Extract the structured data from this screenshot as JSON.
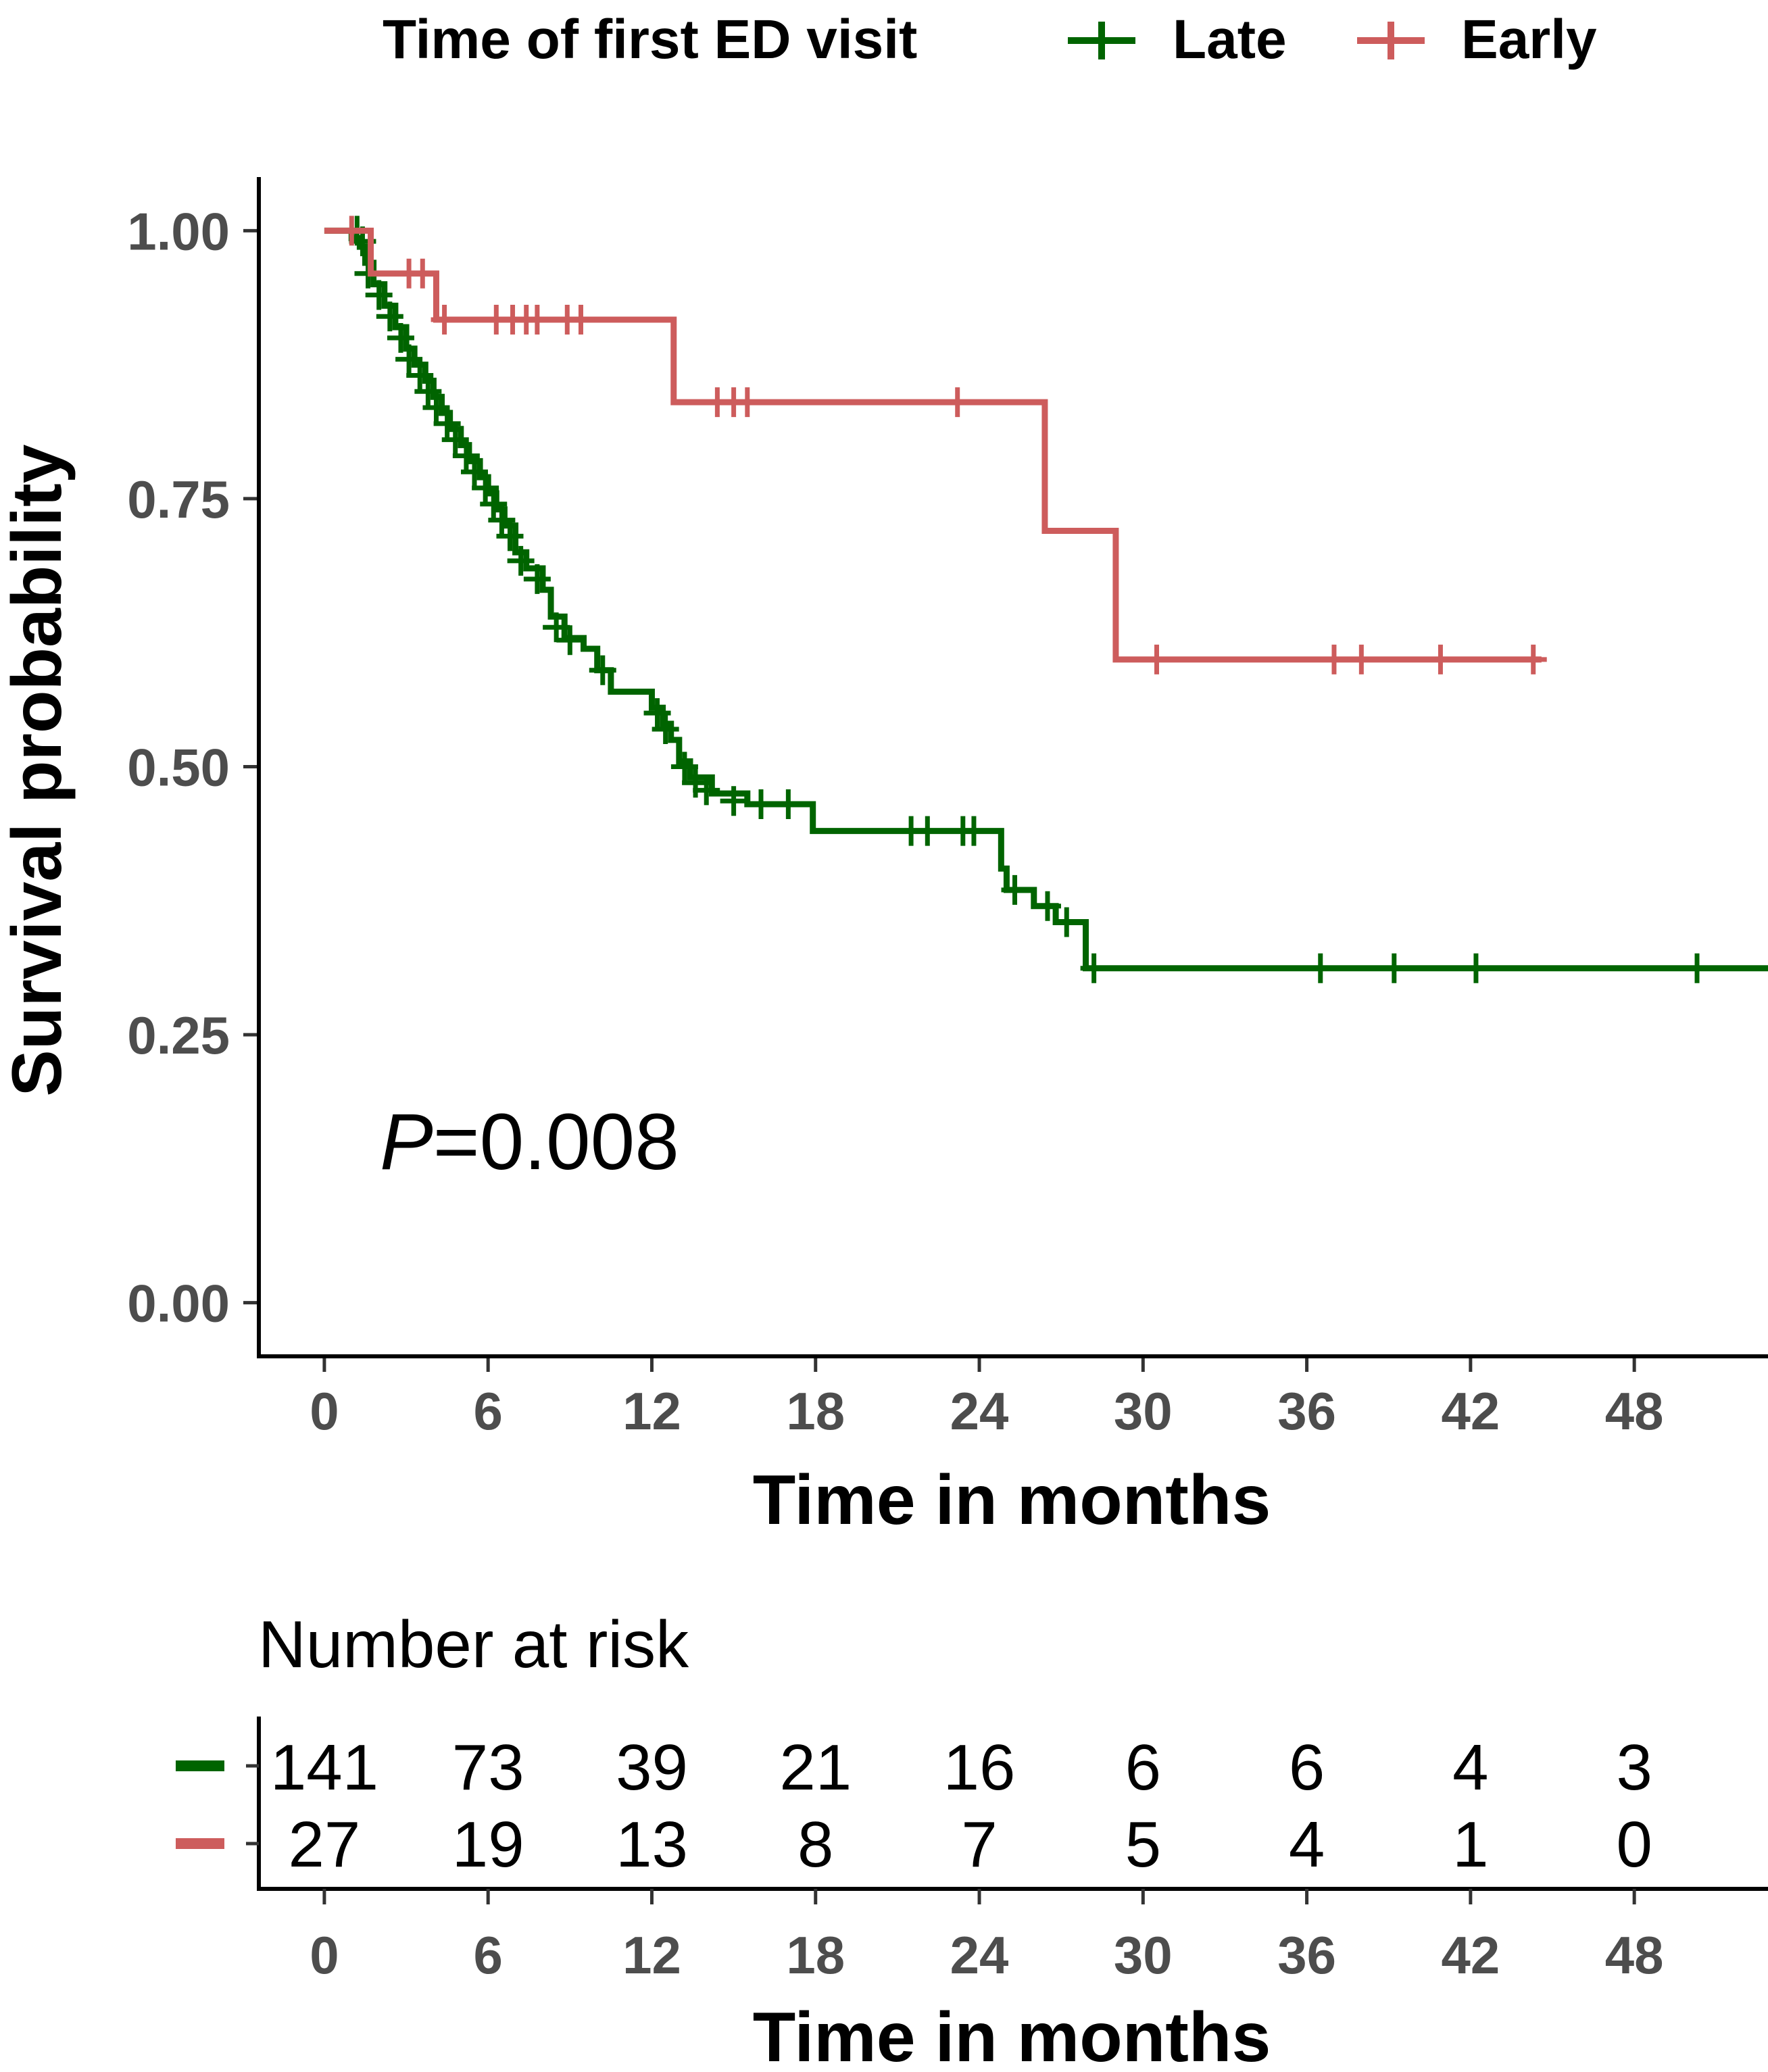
{
  "chart_data": [
    {
      "type": "line",
      "subtype": "kaplan-meier",
      "title": "",
      "xlabel": "Time in months",
      "ylabel": "Survival probability",
      "xlim": [
        -2.4,
        52.9
      ],
      "ylim": [
        -0.05,
        1.05
      ],
      "x_ticks": [
        0,
        6,
        12,
        18,
        24,
        30,
        36,
        42,
        48
      ],
      "y_ticks": [
        0.0,
        0.25,
        0.5,
        0.75,
        1.0
      ],
      "y_tick_labels": [
        "0.00",
        "0.25",
        "0.50",
        "0.75",
        "1.00"
      ],
      "legend": {
        "title": "Time of first ED visit",
        "position": "top",
        "entries": [
          "Late",
          "Early"
        ]
      },
      "annotation": {
        "italic": "P",
        "rest": "=0.008"
      },
      "series": [
        {
          "name": "Late",
          "color": "#006400",
          "steps": [
            [
              0,
              1.0
            ],
            [
              1.0,
              0.993
            ],
            [
              1.3,
              0.985
            ],
            [
              1.5,
              0.97
            ],
            [
              1.8,
              0.95
            ],
            [
              2.2,
              0.93
            ],
            [
              2.6,
              0.91
            ],
            [
              3.0,
              0.89
            ],
            [
              3.3,
              0.875
            ],
            [
              3.7,
              0.86
            ],
            [
              4.0,
              0.845
            ],
            [
              4.3,
              0.83
            ],
            [
              4.6,
              0.815
            ],
            [
              5.0,
              0.8
            ],
            [
              5.3,
              0.785
            ],
            [
              5.7,
              0.77
            ],
            [
              6.0,
              0.755
            ],
            [
              6.3,
              0.74
            ],
            [
              6.6,
              0.725
            ],
            [
              7.0,
              0.7
            ],
            [
              7.4,
              0.685
            ],
            [
              8.0,
              0.665
            ],
            [
              8.3,
              0.64
            ],
            [
              8.8,
              0.62
            ],
            [
              9.5,
              0.61
            ],
            [
              10.0,
              0.59
            ],
            [
              10.5,
              0.57
            ],
            [
              12.0,
              0.555
            ],
            [
              12.4,
              0.54
            ],
            [
              12.7,
              0.525
            ],
            [
              13.0,
              0.505
            ],
            [
              13.4,
              0.49
            ],
            [
              14.2,
              0.475
            ],
            [
              15.5,
              0.465
            ],
            [
              17.9,
              0.44
            ],
            [
              24.8,
              0.405
            ],
            [
              25.0,
              0.385
            ],
            [
              26.0,
              0.37
            ],
            [
              26.8,
              0.355
            ],
            [
              27.9,
              0.312
            ],
            [
              52.9,
              0.312
            ]
          ],
          "censors": [
            [
              1.2,
              1.0
            ],
            [
              1.4,
              0.99
            ],
            [
              1.6,
              0.96
            ],
            [
              2.0,
              0.94
            ],
            [
              2.4,
              0.92
            ],
            [
              2.8,
              0.9
            ],
            [
              3.1,
              0.88
            ],
            [
              3.5,
              0.865
            ],
            [
              3.8,
              0.85
            ],
            [
              4.1,
              0.835
            ],
            [
              4.5,
              0.82
            ],
            [
              4.8,
              0.805
            ],
            [
              5.2,
              0.79
            ],
            [
              5.5,
              0.775
            ],
            [
              5.9,
              0.76
            ],
            [
              6.2,
              0.745
            ],
            [
              6.5,
              0.73
            ],
            [
              6.8,
              0.715
            ],
            [
              7.2,
              0.692
            ],
            [
              7.8,
              0.675
            ],
            [
              8.5,
              0.63
            ],
            [
              9.0,
              0.618
            ],
            [
              10.2,
              0.59
            ],
            [
              12.2,
              0.55
            ],
            [
              12.5,
              0.535
            ],
            [
              13.2,
              0.5
            ],
            [
              13.6,
              0.485
            ],
            [
              14.0,
              0.478
            ],
            [
              15.0,
              0.468
            ],
            [
              16.0,
              0.465
            ],
            [
              17.0,
              0.465
            ],
            [
              21.5,
              0.44
            ],
            [
              22.1,
              0.44
            ],
            [
              23.4,
              0.44
            ],
            [
              23.8,
              0.44
            ],
            [
              25.3,
              0.385
            ],
            [
              26.5,
              0.37
            ],
            [
              27.2,
              0.355
            ],
            [
              28.2,
              0.312
            ],
            [
              36.5,
              0.312
            ],
            [
              39.2,
              0.312
            ],
            [
              42.2,
              0.312
            ],
            [
              50.3,
              0.312
            ]
          ]
        },
        {
          "name": "Early",
          "color": "#cd5c5c",
          "steps": [
            [
              0,
              1.0
            ],
            [
              1.7,
              0.96
            ],
            [
              4.1,
              0.917
            ],
            [
              12.8,
              0.84
            ],
            [
              26.4,
              0.72
            ],
            [
              29.0,
              0.6
            ],
            [
              44.6,
              0.6
            ]
          ],
          "censors": [
            [
              1.0,
              1.0
            ],
            [
              3.1,
              0.96
            ],
            [
              3.6,
              0.96
            ],
            [
              4.4,
              0.917
            ],
            [
              6.3,
              0.917
            ],
            [
              6.9,
              0.917
            ],
            [
              7.4,
              0.917
            ],
            [
              7.8,
              0.917
            ],
            [
              8.9,
              0.917
            ],
            [
              9.4,
              0.917
            ],
            [
              14.4,
              0.84
            ],
            [
              15.0,
              0.84
            ],
            [
              15.5,
              0.84
            ],
            [
              23.2,
              0.84
            ],
            [
              30.5,
              0.6
            ],
            [
              37.0,
              0.6
            ],
            [
              38.0,
              0.6
            ],
            [
              40.9,
              0.6
            ],
            [
              44.3,
              0.6
            ]
          ]
        }
      ]
    },
    {
      "type": "table",
      "title": "Number at risk",
      "xlabel": "Time in months",
      "x_ticks": [
        0,
        6,
        12,
        18,
        24,
        30,
        36,
        42,
        48
      ],
      "rows": [
        {
          "name": "Late",
          "color": "#006400",
          "values": [
            141,
            73,
            39,
            21,
            16,
            6,
            6,
            4,
            3
          ]
        },
        {
          "name": "Early",
          "color": "#cd5c5c",
          "values": [
            27,
            19,
            13,
            8,
            7,
            5,
            4,
            1,
            0
          ]
        }
      ]
    }
  ]
}
